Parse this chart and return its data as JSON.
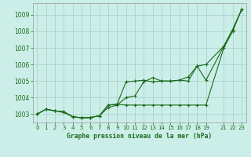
{
  "title": "Graphe pression niveau de la mer (hPa)",
  "background_color": "#cceee8",
  "grid_color": "#aad4ce",
  "line_color": "#1a6b1a",
  "xlim": [
    -0.5,
    23.5
  ],
  "ylim": [
    1002.5,
    1009.7
  ],
  "xticks": [
    0,
    1,
    2,
    3,
    4,
    5,
    6,
    7,
    8,
    9,
    10,
    11,
    12,
    13,
    14,
    15,
    16,
    17,
    18,
    19,
    21,
    22,
    23
  ],
  "yticks": [
    1003,
    1004,
    1005,
    1006,
    1007,
    1008,
    1009
  ],
  "series1_x": [
    0,
    1,
    2,
    3,
    4,
    5,
    6,
    7,
    8,
    9,
    10,
    11,
    12,
    13,
    14,
    15,
    16,
    17,
    18,
    19,
    21,
    22,
    23
  ],
  "series1_y": [
    1003.0,
    1003.3,
    1003.2,
    1003.1,
    1002.85,
    1002.78,
    1002.8,
    1002.9,
    1003.55,
    1003.6,
    1003.55,
    1003.55,
    1003.55,
    1003.55,
    1003.55,
    1003.55,
    1003.55,
    1003.55,
    1003.55,
    1003.55,
    1007.0,
    1008.0,
    1009.3
  ],
  "series2_x": [
    0,
    1,
    2,
    3,
    4,
    5,
    6,
    7,
    8,
    9,
    10,
    11,
    12,
    13,
    14,
    15,
    16,
    17,
    18,
    19,
    21,
    22,
    23
  ],
  "series2_y": [
    1003.0,
    1003.3,
    1003.2,
    1003.15,
    1002.85,
    1002.78,
    1002.8,
    1002.9,
    1003.55,
    1003.6,
    1004.95,
    1005.0,
    1005.05,
    1004.95,
    1005.0,
    1005.0,
    1005.05,
    1005.0,
    1005.9,
    1005.05,
    1007.1,
    1008.1,
    1009.3
  ],
  "series3_x": [
    0,
    1,
    2,
    3,
    4,
    5,
    6,
    7,
    8,
    9,
    10,
    11,
    12,
    13,
    14,
    15,
    16,
    17,
    18,
    19,
    21,
    22,
    23
  ],
  "series3_y": [
    1003.0,
    1003.3,
    1003.2,
    1003.15,
    1002.85,
    1002.78,
    1002.8,
    1002.9,
    1003.4,
    1003.55,
    1004.0,
    1004.1,
    1004.95,
    1005.2,
    1005.0,
    1005.0,
    1005.05,
    1005.25,
    1005.9,
    1006.0,
    1007.1,
    1008.1,
    1009.3
  ]
}
